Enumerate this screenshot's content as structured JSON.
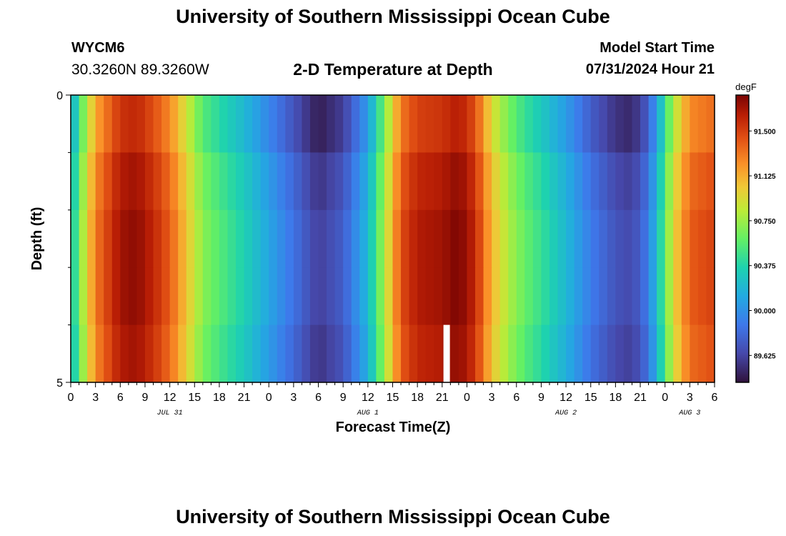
{
  "header": {
    "title": "University of Southern Mississippi Ocean Cube",
    "station_id": "WYCM6",
    "coordinates": "30.3260N  89.3260W",
    "chart_title": "2-D Temperature at Depth",
    "model_start_label": "Model Start Time",
    "model_start_value": "07/31/2024 Hour 21"
  },
  "footer": {
    "title": "University of Southern Mississippi Ocean Cube"
  },
  "chart_data": {
    "type": "heatmap",
    "title": "2-D Temperature at Depth",
    "xlabel": "Forecast Time(Z)",
    "ylabel": "Depth (ft)",
    "x_hours_start": 0,
    "x_hours_end": 78,
    "x_tick_step_hours": 3,
    "x_tick_labels": [
      "0",
      "3",
      "6",
      "9",
      "12",
      "15",
      "18",
      "21",
      "0",
      "3",
      "6",
      "9",
      "12",
      "15",
      "18",
      "21",
      "0",
      "3",
      "6",
      "9",
      "12",
      "15",
      "18",
      "21",
      "0",
      "3",
      "6"
    ],
    "date_labels": [
      {
        "text": "JUL 31",
        "hour": 12
      },
      {
        "text": "AUG 1",
        "hour": 36
      },
      {
        "text": "AUG 2",
        "hour": 60
      },
      {
        "text": "AUG 3",
        "hour": 75
      }
    ],
    "y_range": [
      0,
      5
    ],
    "y_tick_labels": [
      "0",
      "5"
    ],
    "depth_bands": 5,
    "colorbar": {
      "unit": "degF",
      "min": 89.4,
      "max": 91.8,
      "tick_values": [
        91.5,
        91.125,
        90.75,
        90.375,
        90.0,
        89.625
      ],
      "tick_labels": [
        "91.500",
        "91.125",
        "90.750",
        "90.375",
        "90.000",
        "89.625"
      ]
    },
    "temperature_keypoints": [
      {
        "hour": 0,
        "temp": 90.15
      },
      {
        "hour": 1.5,
        "temp": 90.7
      },
      {
        "hour": 3,
        "temp": 91.2
      },
      {
        "hour": 6,
        "temp": 91.6
      },
      {
        "hour": 8,
        "temp": 91.65
      },
      {
        "hour": 10,
        "temp": 91.5
      },
      {
        "hour": 12,
        "temp": 91.3
      },
      {
        "hour": 14,
        "temp": 90.95
      },
      {
        "hour": 16,
        "temp": 90.6
      },
      {
        "hour": 18,
        "temp": 90.45
      },
      {
        "hour": 21,
        "temp": 90.25
      },
      {
        "hour": 24,
        "temp": 90.0
      },
      {
        "hour": 27,
        "temp": 89.75
      },
      {
        "hour": 30,
        "temp": 89.5
      },
      {
        "hour": 33,
        "temp": 89.65
      },
      {
        "hour": 36,
        "temp": 90.1
      },
      {
        "hour": 38,
        "temp": 90.7
      },
      {
        "hour": 40,
        "temp": 91.35
      },
      {
        "hour": 42,
        "temp": 91.55
      },
      {
        "hour": 45,
        "temp": 91.6
      },
      {
        "hour": 47,
        "temp": 91.7
      },
      {
        "hour": 49,
        "temp": 91.5
      },
      {
        "hour": 51,
        "temp": 91.0
      },
      {
        "hour": 53,
        "temp": 90.7
      },
      {
        "hour": 55,
        "temp": 90.5
      },
      {
        "hour": 57,
        "temp": 90.35
      },
      {
        "hour": 60,
        "temp": 90.1
      },
      {
        "hour": 63,
        "temp": 89.8
      },
      {
        "hour": 66,
        "temp": 89.6
      },
      {
        "hour": 68,
        "temp": 89.55
      },
      {
        "hour": 70,
        "temp": 89.8
      },
      {
        "hour": 71.5,
        "temp": 90.3
      },
      {
        "hour": 73,
        "temp": 90.85
      },
      {
        "hour": 75,
        "temp": 91.3
      },
      {
        "hour": 78,
        "temp": 91.4
      }
    ],
    "depth_offsets": [
      -0.05,
      0.05,
      0.1,
      0.1,
      0.05
    ],
    "missing_value_marker_hour": 45.5
  }
}
